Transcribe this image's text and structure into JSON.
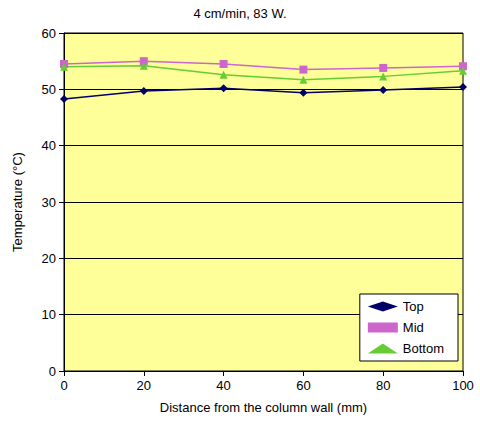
{
  "chart_data": {
    "type": "line",
    "title": "4 cm/min, 83 W.",
    "x_label": "Distance from the column wall (mm)",
    "y_label": "Temperature (°C)",
    "x": [
      0,
      20,
      40,
      60,
      80,
      100
    ],
    "series": [
      {
        "name": "Top",
        "color": "#000066",
        "marker": "diamond",
        "values": [
          48.3,
          49.7,
          50.2,
          49.4,
          49.9,
          50.4
        ]
      },
      {
        "name": "Mid",
        "color": "#CC66CC",
        "marker": "square",
        "values": [
          54.5,
          55.0,
          54.5,
          53.5,
          53.8,
          54.1
        ]
      },
      {
        "name": "Bottom",
        "color": "#66CC33",
        "marker": "triangle",
        "values": [
          54.0,
          54.2,
          52.6,
          51.7,
          52.3,
          53.3
        ]
      }
    ],
    "xlim": [
      0,
      100
    ],
    "xticks": [
      0,
      20,
      40,
      60,
      80,
      100
    ],
    "ylim": [
      0,
      60
    ],
    "yticks": [
      0,
      10,
      20,
      30,
      40,
      50,
      60
    ],
    "grid": true,
    "legend": "lower right"
  }
}
